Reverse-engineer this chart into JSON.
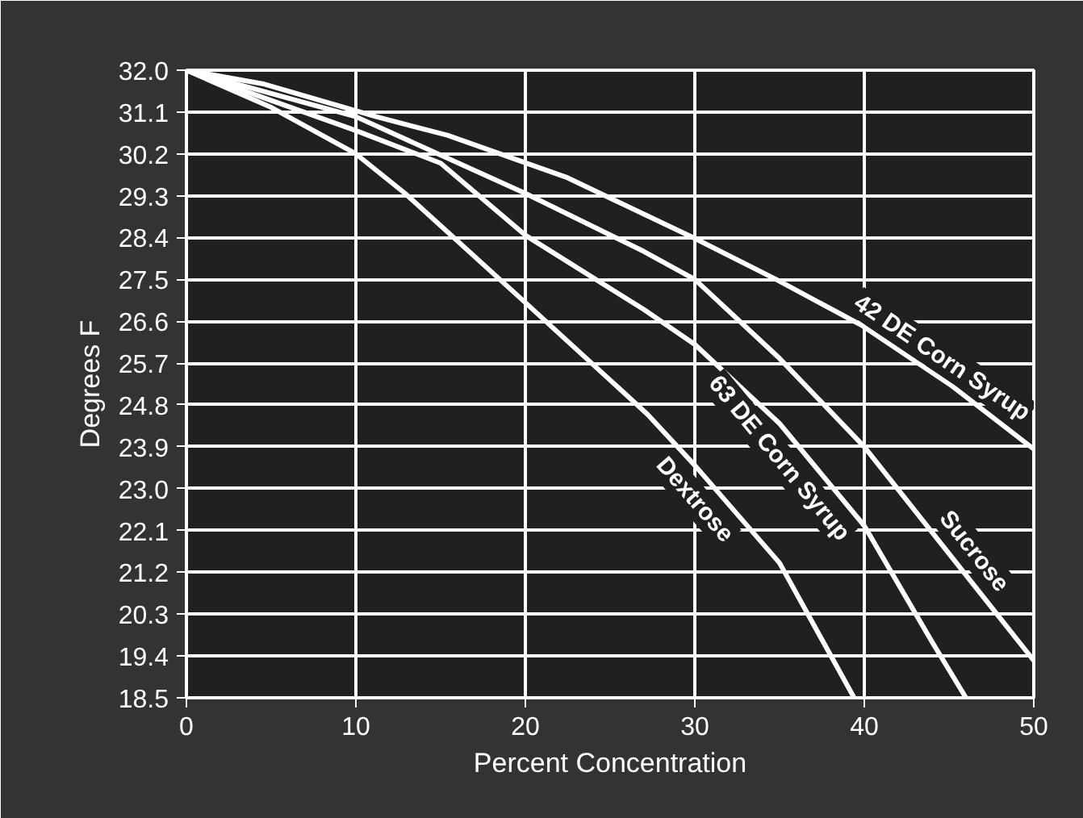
{
  "chart_data": {
    "type": "line",
    "xlabel": "Percent Concentration",
    "ylabel": "Degrees F",
    "xlim": [
      0,
      50
    ],
    "xticks": [
      0,
      10,
      20,
      30,
      40,
      50
    ],
    "ylim": [
      18.5,
      32.0
    ],
    "yticks": [
      {
        "value": 32.0,
        "label": "32.0"
      },
      {
        "value": 31.1,
        "label": "31.1"
      },
      {
        "value": 30.2,
        "label": "30.2"
      },
      {
        "value": 29.3,
        "label": "29.3"
      },
      {
        "value": 28.4,
        "label": "28.4"
      },
      {
        "value": 27.5,
        "label": "27.5"
      },
      {
        "value": 26.6,
        "label": "26.6"
      },
      {
        "value": 25.7,
        "label": "25.7"
      },
      {
        "value": 24.8,
        "label": "24.8"
      },
      {
        "value": 23.9,
        "label": "23.9"
      },
      {
        "value": 23.0,
        "label": "23.0"
      },
      {
        "value": 22.1,
        "label": "22.1"
      },
      {
        "value": 21.2,
        "label": "21.2"
      },
      {
        "value": 20.3,
        "label": "20.3"
      },
      {
        "value": 19.4,
        "label": "19.4"
      },
      {
        "value": 18.5,
        "label": "18.5"
      }
    ],
    "grid": true,
    "marker": "none",
    "line_style": "solid",
    "series": [
      {
        "name": "42 DE Corn Syrup",
        "color": "#ffffff",
        "x": [
          0,
          4.6,
          11.2,
          15.4,
          22.4,
          29.9,
          34.8,
          39.9,
          45.2,
          50
        ],
        "values": [
          32.0,
          31.7,
          31.0,
          30.6,
          29.7,
          28.4,
          27.5,
          26.5,
          25.2,
          23.85
        ]
      },
      {
        "name": "Sucrose",
        "color": "#ffffff",
        "x": [
          0,
          10,
          20,
          27,
          30,
          35,
          40,
          45,
          50
        ],
        "values": [
          32.0,
          31.0,
          29.35,
          28.1,
          27.5,
          25.8,
          23.9,
          21.6,
          19.3
        ]
      },
      {
        "name": "63 DE Corn Syrup",
        "color": "#ffffff",
        "x": [
          0,
          10,
          15,
          20,
          27,
          30,
          35,
          40,
          44,
          46
        ],
        "values": [
          32.0,
          30.7,
          30.0,
          28.45,
          26.85,
          26.1,
          24.4,
          22.2,
          19.7,
          18.5
        ]
      },
      {
        "name": "Dextrose",
        "color": "#ffffff",
        "x": [
          0,
          5,
          10,
          12.9,
          20,
          27.2,
          30,
          35,
          39.4
        ],
        "values": [
          32.0,
          31.2,
          30.2,
          29.35,
          27.0,
          24.6,
          23.5,
          21.4,
          18.5
        ]
      }
    ]
  }
}
